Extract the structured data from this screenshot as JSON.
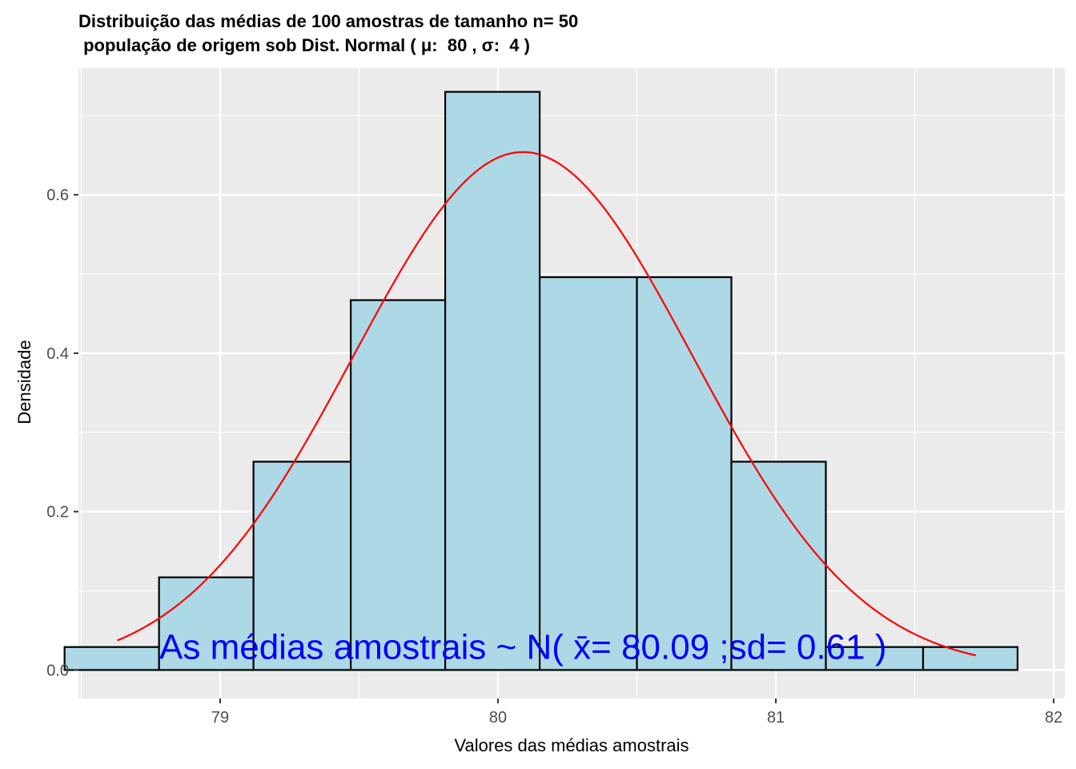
{
  "chart_data": {
    "type": "bar",
    "title_line1": "Distribuição das médias de 100 amostras de tamanho n= 50",
    "title_line2": " população de origem sob Dist. Normal ( μ:  80 , σ:  4 )",
    "xlabel": "Valores das médias amostrais",
    "ylabel": "Densidade",
    "xlim": [
      78.49,
      82.04
    ],
    "ylim": [
      -0.036,
      0.76
    ],
    "x_ticks": [
      79,
      80,
      81,
      82
    ],
    "x_tick_labels": [
      "79",
      "80",
      "81",
      "82"
    ],
    "y_ticks": [
      0.0,
      0.2,
      0.4,
      0.6
    ],
    "y_tick_labels": [
      "0.0",
      "0.2",
      "0.4",
      "0.6"
    ],
    "grid": true,
    "bins": [
      {
        "start": 78.44,
        "end": 78.78,
        "density": 0.029
      },
      {
        "start": 78.78,
        "end": 79.12,
        "density": 0.117
      },
      {
        "start": 79.12,
        "end": 79.47,
        "density": 0.263
      },
      {
        "start": 79.47,
        "end": 79.81,
        "density": 0.467
      },
      {
        "start": 79.81,
        "end": 80.15,
        "density": 0.73
      },
      {
        "start": 80.15,
        "end": 80.5,
        "density": 0.496
      },
      {
        "start": 80.5,
        "end": 80.84,
        "density": 0.496
      },
      {
        "start": 80.84,
        "end": 81.18,
        "density": 0.263
      },
      {
        "start": 81.18,
        "end": 81.53,
        "density": 0.029
      },
      {
        "start": 81.53,
        "end": 81.87,
        "density": 0.029
      }
    ],
    "normal_curve": {
      "mean": 80.09,
      "sd": 0.61,
      "x_range": [
        78.63,
        81.72
      ]
    },
    "annotation": {
      "text": "As médias amostrais ~ N( x̄= 80.09 ;sd= 0.61 )",
      "x": 80.09,
      "y": 0.029
    },
    "colors": {
      "panel_background": "#ebebeb",
      "grid": "#ffffff",
      "bar_fill": "#add8e6",
      "bar_border": "#000000",
      "curve": "#ff0000",
      "annotation": "#0000ff"
    }
  }
}
